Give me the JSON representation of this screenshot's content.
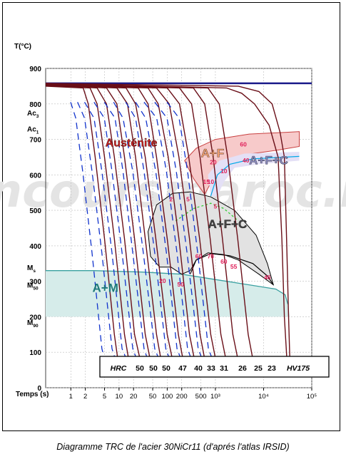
{
  "chart_data": {
    "type": "line",
    "title": "",
    "ylabel": "T(°C)",
    "xlabel": "Temps (s)",
    "x_scale": "log",
    "xlim": [
      0.3,
      100000
    ],
    "ylim": [
      0,
      900
    ],
    "grid": true,
    "x_ticks": [
      {
        "v": 1,
        "label": "1"
      },
      {
        "v": 2,
        "label": "2"
      },
      {
        "v": 5,
        "label": "5"
      },
      {
        "v": 10,
        "label": "10"
      },
      {
        "v": 20,
        "label": "20"
      },
      {
        "v": 50,
        "label": "50"
      },
      {
        "v": 100,
        "label": "100"
      },
      {
        "v": 200,
        "label": "200"
      },
      {
        "v": 500,
        "label": "500"
      },
      {
        "v": 1000,
        "label": "10³"
      },
      {
        "v": 10000,
        "label": "10⁴"
      },
      {
        "v": 100000,
        "label": "10⁵"
      }
    ],
    "y_ticks": [
      {
        "v": 0,
        "label": "0"
      },
      {
        "v": 100,
        "label": "100"
      },
      {
        "v": 200,
        "label": "200"
      },
      {
        "v": 300,
        "label": "300"
      },
      {
        "v": 400,
        "label": "400"
      },
      {
        "v": 500,
        "label": "500"
      },
      {
        "v": 600,
        "label": "600"
      },
      {
        "v": 700,
        "label": "700"
      },
      {
        "v": 800,
        "label": "800"
      },
      {
        "v": 900,
        "label": "900"
      }
    ],
    "reference_lines": [
      {
        "label": "Ac",
        "sub": "3",
        "y": 775
      },
      {
        "label": "Ac",
        "sub": "1",
        "y": 730
      },
      {
        "label": "M",
        "sub": "s",
        "y": 340
      },
      {
        "label": "M",
        "sub": "50",
        "y": 290
      },
      {
        "label": "M",
        "sub": "90",
        "y": 185
      }
    ],
    "phase_labels": [
      {
        "text": "Austénite",
        "x": 5.2,
        "y": 680,
        "color": "#cc2222"
      },
      {
        "text": "A+F",
        "x": 500,
        "y": 650,
        "color": "#f2a070"
      },
      {
        "text": "A+F+C",
        "x": 5000,
        "y": 630,
        "color": "#8c8cc0"
      },
      {
        "text": "A+F+C",
        "x": 700,
        "y": 450,
        "color": "#444444"
      },
      {
        "text": "A+M",
        "x": 2.8,
        "y": 270,
        "color": "#1f7a7a"
      }
    ],
    "region_values": [
      {
        "text": "60",
        "x": 3800,
        "y": 680
      },
      {
        "text": "40",
        "x": 4300,
        "y": 635
      },
      {
        "text": "20",
        "x": 900,
        "y": 630
      },
      {
        "text": "10",
        "x": 1500,
        "y": 605
      },
      {
        "text": "15",
        "x": 650,
        "y": 575
      },
      {
        "text": "10",
        "x": 800,
        "y": 575
      },
      {
        "text": "2",
        "x": 120,
        "y": 525
      },
      {
        "text": "5",
        "x": 270,
        "y": 525
      },
      {
        "text": "5",
        "x": 1000,
        "y": 505
      },
      {
        "text": "60",
        "x": 450,
        "y": 365
      },
      {
        "text": "70",
        "x": 800,
        "y": 365
      },
      {
        "text": "60",
        "x": 1500,
        "y": 350
      },
      {
        "text": "55",
        "x": 2400,
        "y": 335
      },
      {
        "text": "20",
        "x": 80,
        "y": 295
      },
      {
        "text": "50",
        "x": 190,
        "y": 285
      },
      {
        "text": "46",
        "x": 12000,
        "y": 305
      }
    ],
    "hardness": {
      "label_left": "HRC",
      "values": [
        "50",
        "50",
        "50",
        "47",
        "40",
        "33",
        "31",
        "26",
        "25",
        "23"
      ],
      "label_right": "HV175"
    },
    "series": [
      {
        "values": [
          [
            0.3,
            850
          ],
          [
            1.8,
            845
          ],
          [
            2.3,
            800
          ],
          [
            3.2,
            650
          ],
          [
            5,
            420
          ],
          [
            8,
            150
          ],
          [
            10,
            55
          ]
        ]
      },
      {
        "values": [
          [
            0.3,
            852
          ],
          [
            2.5,
            845
          ],
          [
            3.5,
            800
          ],
          [
            5,
            650
          ],
          [
            8,
            420
          ],
          [
            13,
            150
          ],
          [
            17,
            55
          ]
        ]
      },
      {
        "values": [
          [
            0.3,
            852
          ],
          [
            3.5,
            845
          ],
          [
            5.5,
            800
          ],
          [
            8,
            650
          ],
          [
            13,
            420
          ],
          [
            21,
            150
          ],
          [
            30,
            55
          ]
        ]
      },
      {
        "values": [
          [
            0.3,
            853
          ],
          [
            5.5,
            845
          ],
          [
            9,
            800
          ],
          [
            13,
            650
          ],
          [
            21,
            420
          ],
          [
            35,
            150
          ],
          [
            48,
            55
          ]
        ]
      },
      {
        "values": [
          [
            0.3,
            853
          ],
          [
            9,
            845
          ],
          [
            15,
            800
          ],
          [
            22,
            650
          ],
          [
            35,
            420
          ],
          [
            60,
            150
          ],
          [
            80,
            55
          ]
        ]
      },
      {
        "values": [
          [
            0.3,
            853
          ],
          [
            14,
            845
          ],
          [
            22,
            800
          ],
          [
            35,
            650
          ],
          [
            58,
            420
          ],
          [
            100,
            150
          ],
          [
            140,
            55
          ]
        ]
      },
      {
        "values": [
          [
            0.3,
            854
          ],
          [
            25,
            845
          ],
          [
            40,
            800
          ],
          [
            60,
            650
          ],
          [
            100,
            420
          ],
          [
            170,
            150
          ],
          [
            230,
            55
          ]
        ]
      },
      {
        "values": [
          [
            0.3,
            854
          ],
          [
            40,
            845
          ],
          [
            65,
            800
          ],
          [
            105,
            650
          ],
          [
            175,
            420
          ],
          [
            290,
            150
          ],
          [
            400,
            55
          ]
        ]
      },
      {
        "values": [
          [
            0.3,
            855
          ],
          [
            60,
            845
          ],
          [
            110,
            800
          ],
          [
            175,
            650
          ],
          [
            290,
            420
          ],
          [
            480,
            150
          ],
          [
            650,
            55
          ]
        ]
      },
      {
        "values": [
          [
            0.3,
            855
          ],
          [
            100,
            845
          ],
          [
            180,
            800
          ],
          [
            280,
            650
          ],
          [
            470,
            420
          ],
          [
            800,
            150
          ],
          [
            1100,
            55
          ]
        ]
      },
      {
        "values": [
          [
            0.3,
            856
          ],
          [
            180,
            845
          ],
          [
            320,
            800
          ],
          [
            480,
            650
          ],
          [
            780,
            420
          ],
          [
            1300,
            150
          ],
          [
            1800,
            55
          ]
        ]
      },
      {
        "values": [
          [
            0.3,
            856
          ],
          [
            350,
            845
          ],
          [
            600,
            800
          ],
          [
            900,
            650
          ],
          [
            1400,
            420
          ],
          [
            2300,
            150
          ],
          [
            3200,
            55
          ]
        ]
      },
      {
        "values": [
          [
            0.3,
            857
          ],
          [
            700,
            845
          ],
          [
            1200,
            800
          ],
          [
            1800,
            650
          ],
          [
            2900,
            420
          ],
          [
            4800,
            150
          ],
          [
            6500,
            55
          ]
        ]
      },
      {
        "values": [
          [
            0.3,
            858
          ],
          [
            1700,
            845
          ],
          [
            3500,
            830
          ],
          [
            6500,
            800
          ],
          [
            13000,
            740
          ],
          [
            20000,
            650
          ],
          [
            24000,
            420
          ],
          [
            27000,
            200
          ],
          [
            32000,
            30
          ]
        ]
      },
      {
        "values": [
          [
            0.3,
            858
          ],
          [
            3000,
            850
          ],
          [
            8000,
            835
          ],
          [
            15000,
            800
          ],
          [
            22000,
            720
          ],
          [
            27000,
            650
          ],
          [
            30000,
            420
          ],
          [
            33000,
            200
          ],
          [
            36000,
            30
          ]
        ]
      }
    ]
  }
}
